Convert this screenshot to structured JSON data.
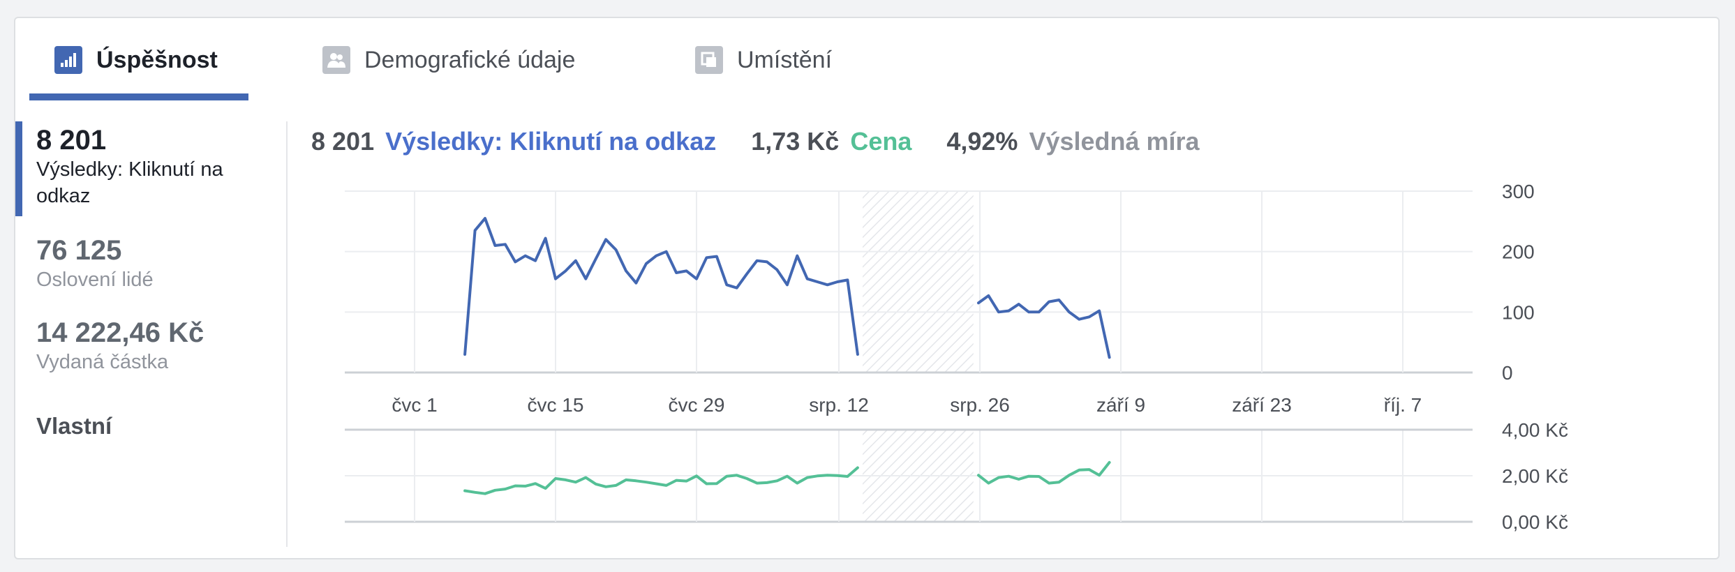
{
  "tabs": [
    {
      "label": "Úspěšnost",
      "icon": "bar-chart-icon"
    },
    {
      "label": "Demografické údaje",
      "icon": "people-icon"
    },
    {
      "label": "Umístění",
      "icon": "placement-icon"
    }
  ],
  "sidebar": {
    "metrics": [
      {
        "value": "8 201",
        "label": "Výsledky: Kliknutí na odkaz"
      },
      {
        "value": "76 125",
        "label": "Oslovení lidé"
      },
      {
        "value": "14 222,46 Kč",
        "label": "Vydaná částka"
      }
    ],
    "custom": "Vlastní"
  },
  "summary": {
    "results_value": "8 201",
    "results_label": "Výsledky: Kliknutí na odkaz",
    "cost_value": "1,73 Kč",
    "cost_label": "Cena",
    "rate_value": "4,92%",
    "rate_label": "Výsledná míra"
  },
  "colors": {
    "results": "#4267b2",
    "results_text": "#4a6fcb",
    "cost": "#54c096",
    "rate_label": "#90949c"
  },
  "chart_data": [
    {
      "type": "line",
      "x_ticks": [
        "čvc 1",
        "čvc 15",
        "čvc 29",
        "srp. 12",
        "srp. 26",
        "září 9",
        "září 23",
        "říj. 7"
      ],
      "y_ticks": [
        "300",
        "200",
        "100",
        "0"
      ],
      "ylim": [
        0,
        300
      ],
      "x_range": [
        "čvc 1",
        "říj. 7"
      ],
      "grid": true,
      "series": [
        {
          "segments": [
            {
              "start": "čvc 6",
              "values": [
                30,
                235,
                255,
                210,
                212,
                183,
                193,
                185,
                222,
                155,
                168,
                185,
                155,
                188,
                220,
                203,
                168,
                148,
                180,
                193,
                200,
                165,
                168,
                155,
                190,
                192,
                145,
                140,
                163,
                185,
                183,
                170,
                145,
                193,
                155,
                150,
                145,
                150,
                153,
                30
              ]
            },
            {
              "start": "srp. 26",
              "values": [
                115,
                127,
                100,
                102,
                113,
                100,
                100,
                117,
                120,
                100,
                88,
                92,
                102,
                25
              ]
            }
          ]
        }
      ],
      "no_data_range": [
        "srp. 15",
        "srp. 25"
      ]
    },
    {
      "type": "line",
      "y_ticks": [
        "4,00 Kč",
        "2,00 Kč",
        "0,00 Kč"
      ],
      "ylim": [
        0,
        4
      ],
      "grid": true,
      "series": [
        {
          "segments": [
            {
              "start": "čvc 6",
              "values": [
                1.35,
                1.28,
                1.22,
                1.37,
                1.42,
                1.56,
                1.55,
                1.66,
                1.45,
                1.88,
                1.82,
                1.72,
                1.92,
                1.64,
                1.52,
                1.58,
                1.82,
                1.78,
                1.72,
                1.65,
                1.58,
                1.8,
                1.77,
                1.99,
                1.65,
                1.66,
                1.98,
                2.02,
                1.88,
                1.68,
                1.7,
                1.78,
                1.98,
                1.68,
                1.92,
                1.99,
                2.02,
                2.01,
                1.97,
                2.35
              ]
            },
            {
              "start": "srp. 26",
              "values": [
                2.02,
                1.68,
                1.92,
                1.98,
                1.85,
                1.98,
                1.97,
                1.68,
                1.72,
                2.02,
                2.25,
                2.27,
                2.02,
                2.58
              ]
            }
          ]
        }
      ],
      "no_data_range": [
        "srp. 15",
        "srp. 25"
      ]
    }
  ]
}
